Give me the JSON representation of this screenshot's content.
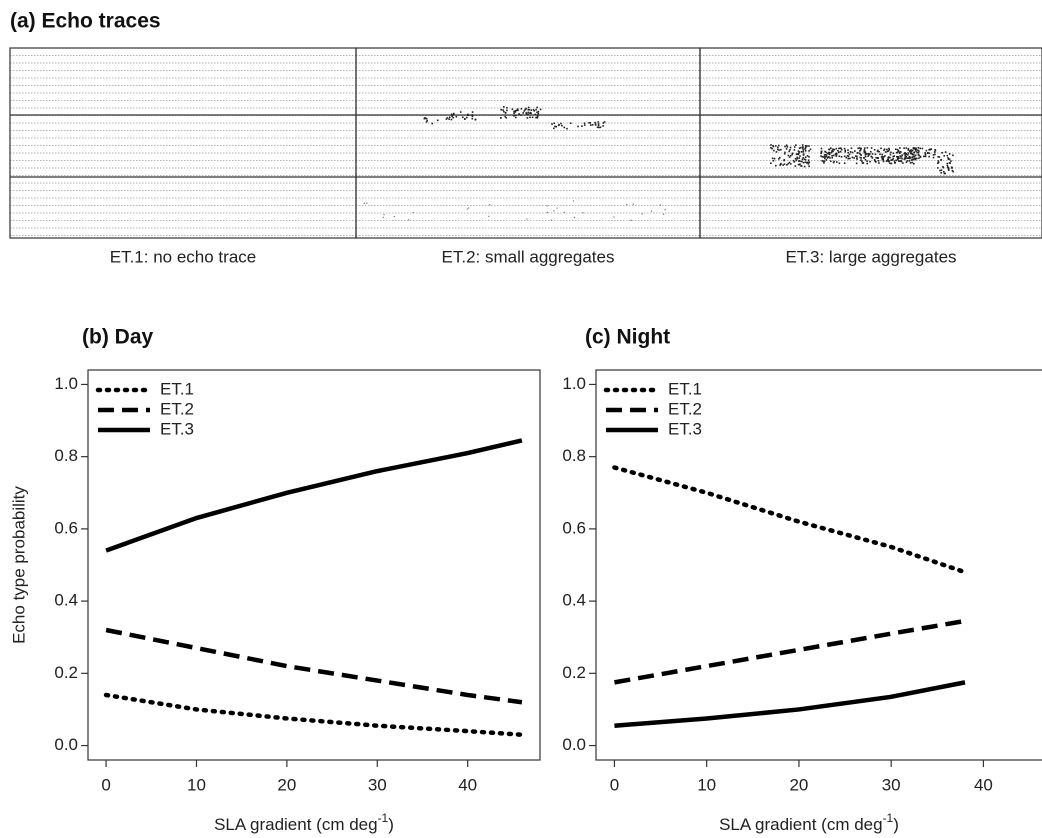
{
  "echo_panel": {
    "title": "(a) Echo traces",
    "labels": [
      "ET.1: no echo trace",
      "ET.2: small aggregates",
      "ET.3: large aggregates"
    ]
  },
  "chart_data": [
    {
      "type": "line",
      "title": "(b) Day",
      "y_label": "Echo type probability",
      "x_label": "SLA gradient (cm deg",
      "x_label_sup": "-1",
      "x_label_end": ")",
      "x": [
        0,
        10,
        20,
        30,
        40,
        46
      ],
      "series": [
        {
          "name": "ET.1",
          "color": "#000000",
          "style": "dotted",
          "values": [
            0.14,
            0.1,
            0.075,
            0.055,
            0.04,
            0.03
          ]
        },
        {
          "name": "ET.2",
          "color": "#000000",
          "style": "dashed",
          "values": [
            0.32,
            0.27,
            0.22,
            0.18,
            0.14,
            0.12
          ]
        },
        {
          "name": "ET.3",
          "color": "#000000",
          "style": "solid",
          "values": [
            0.54,
            0.63,
            0.7,
            0.76,
            0.81,
            0.845
          ]
        }
      ],
      "xlim": [
        -2,
        48
      ],
      "xticks": [
        0,
        10,
        20,
        30,
        40
      ],
      "ylim": [
        -0.04,
        1.04
      ],
      "yticks": [
        {
          "value": 0,
          "label": "0.0"
        },
        0.2,
        0.4,
        0.6,
        0.8,
        {
          "value": 1,
          "label": "1.0"
        }
      ],
      "legend": "upper left"
    },
    {
      "type": "line",
      "title": "(c) Night",
      "x_label": "SLA gradient (cm deg",
      "x_label_sup": "-1",
      "x_label_end": ")",
      "x": [
        0,
        10,
        20,
        30,
        38
      ],
      "series": [
        {
          "name": "ET.1",
          "color": "#000000",
          "style": "dotted",
          "values": [
            0.77,
            0.7,
            0.62,
            0.55,
            0.48
          ]
        },
        {
          "name": "ET.2",
          "color": "#000000",
          "style": "dashed",
          "values": [
            0.175,
            0.22,
            0.265,
            0.31,
            0.345
          ]
        },
        {
          "name": "ET.3",
          "color": "#000000",
          "style": "solid",
          "values": [
            0.055,
            0.075,
            0.1,
            0.135,
            0.175
          ]
        }
      ],
      "xlim": [
        -2,
        47
      ],
      "xticks": [
        0,
        10,
        20,
        30,
        40
      ],
      "ylim": [
        -0.04,
        1.04
      ],
      "yticks": [
        {
          "value": 0,
          "label": "0.0"
        },
        0.2,
        0.4,
        0.6,
        0.8,
        {
          "value": 1,
          "label": "1.0"
        }
      ],
      "legend": "upper left"
    }
  ]
}
